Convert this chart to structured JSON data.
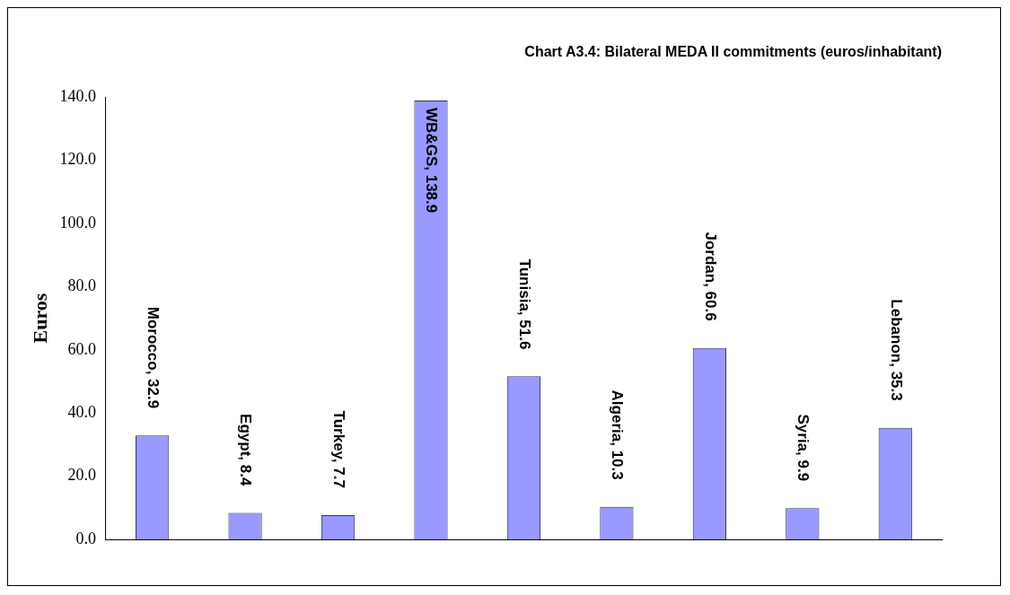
{
  "chart_data": {
    "type": "bar",
    "title": "Chart A3.4: Bilateral MEDA II commitments (euros/inhabitant)",
    "ylabel": "Euros",
    "categories": [
      null,
      null,
      null,
      null,
      null,
      null,
      null,
      null,
      null
    ],
    "values": [
      32.9,
      8.4,
      7.7,
      138.9,
      51.6,
      10.3,
      60.6,
      9.9,
      35.3
    ],
    "value_labels": [
      "Morocco, 32.9",
      "Egypt, 8.4",
      "Turkey, 7.7",
      "WB&GS, 138.9",
      "Tunisia, 51.6",
      "Algeria, 10.3",
      "Jordan, 60.6",
      "Syria, 9.9",
      "Lebanon, 35.3"
    ],
    "color": "#9999ff",
    "ylim": [
      0,
      140
    ],
    "yticks": [
      {
        "value": 0,
        "label": "0.0"
      },
      {
        "value": 20,
        "label": "20.0"
      },
      {
        "value": 40,
        "label": "40.0"
      },
      {
        "value": 60,
        "label": "60.0"
      },
      {
        "value": 80,
        "label": "80.0"
      },
      {
        "value": 100,
        "label": "100.0"
      },
      {
        "value": 120,
        "label": "120.0"
      },
      {
        "value": 140,
        "label": "140.0"
      }
    ],
    "tick_labels": "y",
    "grid": false,
    "legend": false
  }
}
